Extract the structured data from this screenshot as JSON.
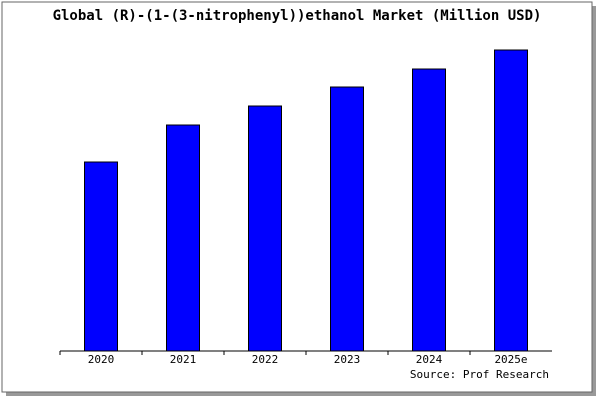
{
  "chart_data": {
    "type": "bar",
    "title": "Global (R)-(1-(3-nitrophenyl))ethanol Market (Million USD)",
    "categories": [
      "2020",
      "2021",
      "2022",
      "2023",
      "2024",
      "2025e"
    ],
    "values": [
      189,
      226,
      245,
      264,
      282,
      301
    ],
    "color": "#0000ff",
    "ylim": [
      0,
      309
    ],
    "source": "Source: Prof Research"
  }
}
